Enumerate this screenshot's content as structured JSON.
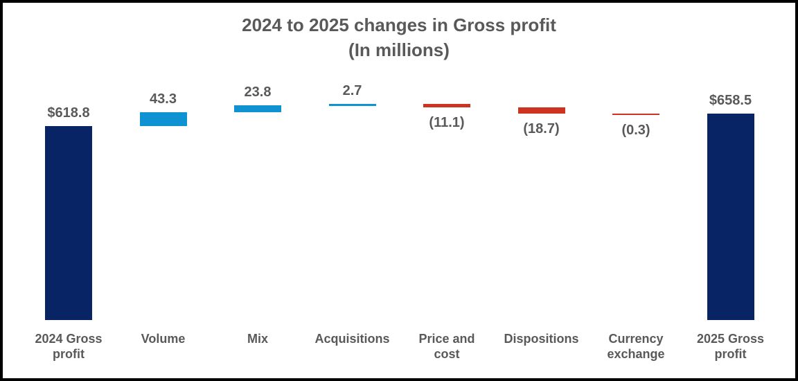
{
  "title": {
    "line1": "2024 to 2025 changes in Gross profit",
    "line2": "(In millions)"
  },
  "colors": {
    "total": "#082464",
    "increase": "#0E92D2",
    "decrease": "#CC3421",
    "label_text": "#595959",
    "background": "#FFFFFF",
    "border": "#000000"
  },
  "chart_data": {
    "type": "bar",
    "subtype": "waterfall",
    "title": "2024 to 2025 changes in Gross profit",
    "subtitle": "(In millions)",
    "xlabel": "",
    "ylabel": "",
    "ylim": [
      0,
      700
    ],
    "gridlines": false,
    "legend": false,
    "baseline": 0,
    "start_total": 618.8,
    "end_total": 658.5,
    "categories": [
      "2024 Gross profit",
      "Volume",
      "Mix",
      "Acquisitions",
      "Price and cost",
      "Dispositions",
      "Currency exchange",
      "2025 Gross profit"
    ],
    "items": [
      {
        "category": "2024 Gross profit",
        "category_lines": [
          "2024 Gross",
          "profit"
        ],
        "value": 618.8,
        "type": "total",
        "label": "$618.8",
        "label_position": "above"
      },
      {
        "category": "Volume",
        "category_lines": [
          "Volume"
        ],
        "value": 43.3,
        "type": "increase",
        "label": "43.3",
        "label_position": "above"
      },
      {
        "category": "Mix",
        "category_lines": [
          "Mix"
        ],
        "value": 23.8,
        "type": "increase",
        "label": "23.8",
        "label_position": "above"
      },
      {
        "category": "Acquisitions",
        "category_lines": [
          "Acquisitions"
        ],
        "value": 2.7,
        "type": "increase",
        "label": "2.7",
        "label_position": "above"
      },
      {
        "category": "Price and cost",
        "category_lines": [
          "Price and",
          "cost"
        ],
        "value": -11.1,
        "type": "decrease",
        "label": "(11.1)",
        "label_position": "below"
      },
      {
        "category": "Dispositions",
        "category_lines": [
          "Dispositions"
        ],
        "value": -18.7,
        "type": "decrease",
        "label": "(18.7)",
        "label_position": "below"
      },
      {
        "category": "Currency exchange",
        "category_lines": [
          "Currency",
          "exchange"
        ],
        "value": -0.3,
        "type": "decrease",
        "label": "(0.3)",
        "label_position": "below"
      },
      {
        "category": "2025 Gross profit",
        "category_lines": [
          "2025 Gross",
          "profit"
        ],
        "value": 658.5,
        "type": "total",
        "label": "$658.5",
        "label_position": "above"
      }
    ]
  }
}
